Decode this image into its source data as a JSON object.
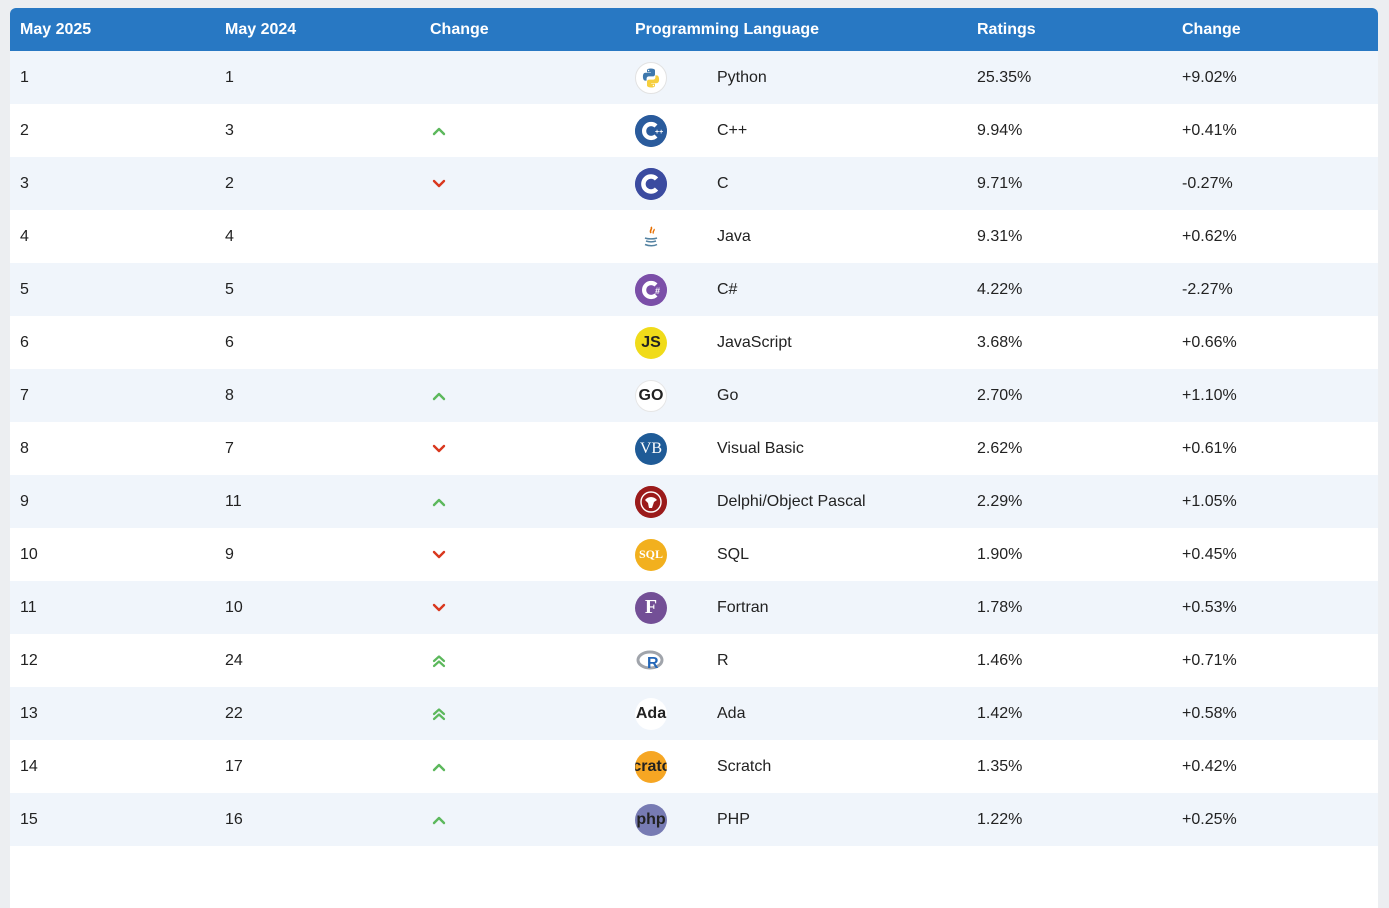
{
  "headers": {
    "current": "May 2025",
    "previous": "May 2024",
    "change": "Change",
    "language": "Programming Language",
    "ratings": "Ratings",
    "rating_change": "Change"
  },
  "colors": {
    "header_bg": "#2878c3",
    "up_arrow": "#5cb85c",
    "down_arrow": "#d9381e"
  },
  "rows": [
    {
      "rank_2025": "1",
      "rank_2024": "1",
      "trend": "none",
      "language": "Python",
      "icon": "python-logo-icon",
      "rating": "25.35%",
      "change": "+9.02%"
    },
    {
      "rank_2025": "2",
      "rank_2024": "3",
      "trend": "up",
      "language": "C++",
      "icon": "cpp-logo-icon",
      "rating": "9.94%",
      "change": "+0.41%"
    },
    {
      "rank_2025": "3",
      "rank_2024": "2",
      "trend": "down",
      "language": "C",
      "icon": "c-logo-icon",
      "rating": "9.71%",
      "change": "-0.27%"
    },
    {
      "rank_2025": "4",
      "rank_2024": "4",
      "trend": "none",
      "language": "Java",
      "icon": "java-logo-icon",
      "rating": "9.31%",
      "change": "+0.62%"
    },
    {
      "rank_2025": "5",
      "rank_2024": "5",
      "trend": "none",
      "language": "C#",
      "icon": "csharp-logo-icon",
      "rating": "4.22%",
      "change": "-2.27%"
    },
    {
      "rank_2025": "6",
      "rank_2024": "6",
      "trend": "none",
      "language": "JavaScript",
      "icon": "javascript-logo-icon",
      "rating": "3.68%",
      "change": "+0.66%"
    },
    {
      "rank_2025": "7",
      "rank_2024": "8",
      "trend": "up",
      "language": "Go",
      "icon": "go-logo-icon",
      "rating": "2.70%",
      "change": "+1.10%"
    },
    {
      "rank_2025": "8",
      "rank_2024": "7",
      "trend": "down",
      "language": "Visual Basic",
      "icon": "visual-basic-logo-icon",
      "rating": "2.62%",
      "change": "+0.61%"
    },
    {
      "rank_2025": "9",
      "rank_2024": "11",
      "trend": "up",
      "language": "Delphi/Object Pascal",
      "icon": "delphi-logo-icon",
      "rating": "2.29%",
      "change": "+1.05%"
    },
    {
      "rank_2025": "10",
      "rank_2024": "9",
      "trend": "down",
      "language": "SQL",
      "icon": "sql-logo-icon",
      "rating": "1.90%",
      "change": "+0.45%"
    },
    {
      "rank_2025": "11",
      "rank_2024": "10",
      "trend": "down",
      "language": "Fortran",
      "icon": "fortran-logo-icon",
      "rating": "1.78%",
      "change": "+0.53%"
    },
    {
      "rank_2025": "12",
      "rank_2024": "24",
      "trend": "up-double",
      "language": "R",
      "icon": "r-logo-icon",
      "rating": "1.46%",
      "change": "+0.71%"
    },
    {
      "rank_2025": "13",
      "rank_2024": "22",
      "trend": "up-double",
      "language": "Ada",
      "icon": "ada-logo-icon",
      "rating": "1.42%",
      "change": "+0.58%"
    },
    {
      "rank_2025": "14",
      "rank_2024": "17",
      "trend": "up",
      "language": "Scratch",
      "icon": "scratch-logo-icon",
      "rating": "1.35%",
      "change": "+0.42%"
    },
    {
      "rank_2025": "15",
      "rank_2024": "16",
      "trend": "up",
      "language": "PHP",
      "icon": "php-logo-icon",
      "rating": "1.22%",
      "change": "+0.25%"
    }
  ],
  "logo_text": {
    "JavaScript": "JS",
    "Go": "GO",
    "Visual Basic": "VB",
    "SQL": "SQL",
    "Fortran": "F",
    "R": "R",
    "Ada": "Ada",
    "Scratch": "Scratch",
    "PHP": "php"
  }
}
